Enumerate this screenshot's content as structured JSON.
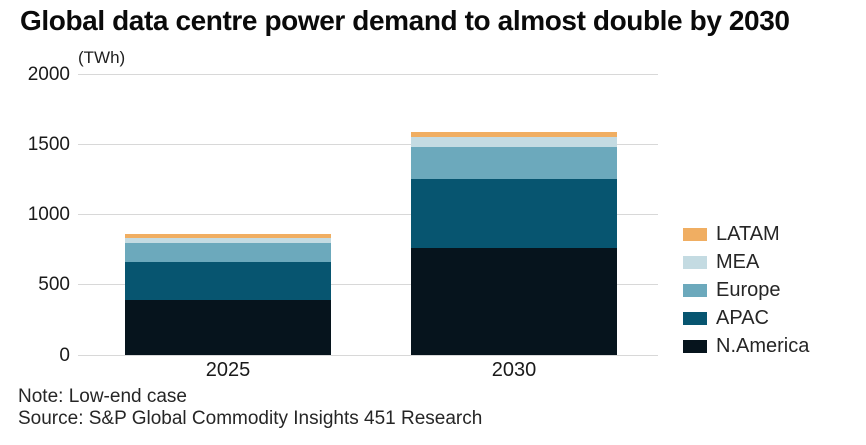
{
  "title": "Global data centre power demand to almost double by 2030",
  "unit_label": "(TWh)",
  "note": "Note: Low-end case",
  "source": "Source: S&P Global Commodity Insights 451 Research",
  "colors": {
    "grid": "#d8d8d8",
    "title_text": "#0a0a0a",
    "body_text": "#262626"
  },
  "chart_data": {
    "type": "bar",
    "stacked": true,
    "title": "Global data centre power demand to almost double by 2030",
    "ylabel": "(TWh)",
    "xlabel": "",
    "categories": [
      "2025",
      "2030"
    ],
    "series": [
      {
        "name": "N.America",
        "color": "#06141d",
        "values": [
          395,
          760
        ]
      },
      {
        "name": "APAC",
        "color": "#075570",
        "values": [
          270,
          495
        ]
      },
      {
        "name": "Europe",
        "color": "#6ca9bc",
        "values": [
          135,
          225
        ]
      },
      {
        "name": "MEA",
        "color": "#c4dbe2",
        "values": [
          35,
          70
        ]
      },
      {
        "name": "LATAM",
        "color": "#f0ae62",
        "values": [
          30,
          35
        ]
      }
    ],
    "totals": [
      865,
      1585
    ],
    "ylim": [
      0,
      2000
    ],
    "yticks": [
      0,
      500,
      1000,
      1500,
      2000
    ],
    "grid": "horizontal",
    "legend_position": "right",
    "legend_order_top_to_bottom": [
      "LATAM",
      "MEA",
      "Europe",
      "APAC",
      "N.America"
    ]
  }
}
